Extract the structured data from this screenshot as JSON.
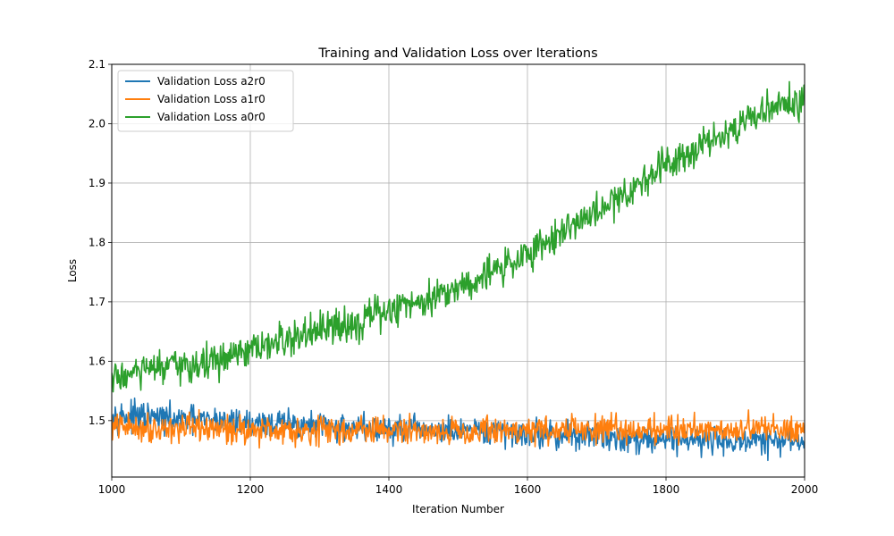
{
  "chart_data": {
    "type": "line",
    "title": "Training and Validation Loss over Iterations",
    "xlabel": "Iteration Number",
    "ylabel": "Loss",
    "xlim": [
      1000,
      2000
    ],
    "ylim": [
      1.405,
      2.1
    ],
    "xticks": [
      "1000",
      "1200",
      "1400",
      "1600",
      "1800",
      "2000"
    ],
    "yticks": [
      "1.5",
      "1.6",
      "1.7",
      "1.8",
      "1.9",
      "2.0",
      "2.1"
    ],
    "grid": true,
    "legend_position": "top-left",
    "series": [
      {
        "name": "Validation Loss a2r0",
        "color": "#1f77b4",
        "x": [
          1000,
          1050,
          1100,
          1150,
          1200,
          1250,
          1300,
          1350,
          1400,
          1450,
          1500,
          1550,
          1600,
          1650,
          1700,
          1750,
          1800,
          1850,
          1900,
          1950,
          2000
        ],
        "values": [
          1.51,
          1.505,
          1.5,
          1.5,
          1.495,
          1.495,
          1.49,
          1.49,
          1.485,
          1.485,
          1.48,
          1.48,
          1.48,
          1.475,
          1.475,
          1.47,
          1.47,
          1.47,
          1.465,
          1.465,
          1.465
        ],
        "noise": 0.022
      },
      {
        "name": "Validation Loss a1r0",
        "color": "#ff7f0e",
        "x": [
          1000,
          1050,
          1100,
          1150,
          1200,
          1250,
          1300,
          1350,
          1400,
          1450,
          1500,
          1550,
          1600,
          1650,
          1700,
          1750,
          1800,
          1850,
          1900,
          1950,
          2000
        ],
        "values": [
          1.49,
          1.488,
          1.487,
          1.486,
          1.485,
          1.485,
          1.484,
          1.484,
          1.484,
          1.483,
          1.483,
          1.483,
          1.484,
          1.484,
          1.485,
          1.485,
          1.486,
          1.486,
          1.486,
          1.487,
          1.487
        ],
        "noise": 0.022
      },
      {
        "name": "Validation Loss a0r0",
        "color": "#2ca02c",
        "x": [
          1000,
          1050,
          1100,
          1150,
          1200,
          1250,
          1300,
          1350,
          1400,
          1450,
          1500,
          1550,
          1600,
          1650,
          1700,
          1750,
          1800,
          1850,
          1900,
          1950,
          2000
        ],
        "values": [
          1.57,
          1.585,
          1.59,
          1.6,
          1.615,
          1.635,
          1.65,
          1.665,
          1.685,
          1.705,
          1.725,
          1.75,
          1.78,
          1.82,
          1.85,
          1.89,
          1.935,
          1.965,
          1.995,
          2.025,
          2.04
        ],
        "noise": 0.028
      }
    ]
  }
}
